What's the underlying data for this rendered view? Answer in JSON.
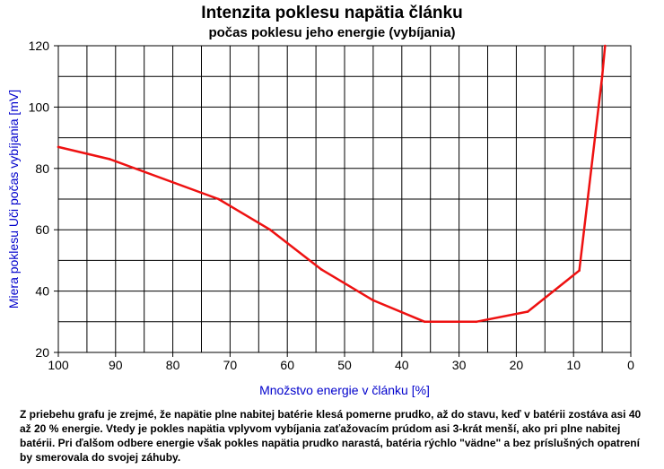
{
  "chart_data": {
    "type": "line",
    "title": "Intenzita poklesu napätia článku",
    "subtitle": "počas poklesu jeho energie (vybíjania)",
    "xlabel": "Množstvo energie v článku [%]",
    "ylabel": "Miera poklesu Uči počas vybíjania [mV]",
    "xlim": [
      100,
      0
    ],
    "ylim": [
      20,
      120
    ],
    "x_reversed": true,
    "xticks": [
      100,
      90,
      80,
      70,
      60,
      50,
      40,
      30,
      20,
      10,
      0
    ],
    "yticks": [
      20,
      40,
      60,
      80,
      100,
      120
    ],
    "grid": true,
    "series": [
      {
        "color": "#ee1111",
        "x": [
          100,
          91,
          72,
          63,
          54,
          45,
          36,
          27,
          18,
          9,
          5,
          4.5
        ],
        "y": [
          87,
          83,
          70,
          60,
          47,
          37,
          30,
          30,
          33.3,
          46.7,
          110,
          120
        ]
      }
    ]
  },
  "note": "Z priebehu grafu je zrejmé, že napätie plne nabitej batérie klesá pomerne prudko, až do stavu, keď v batérii zostáva asi 40 až 20 % energie. Vtedy je pokles napätia vplyvom vybíjania zaťažovacím prúdom asi 3-krát menší, ako pri plne nabitej batérii. Pri ďalšom odbere energie však pokles napätia prudko narastá, batéria rýchlo \"vädne\" a bez príslušných opatrení by smerovala do svojej záhuby."
}
